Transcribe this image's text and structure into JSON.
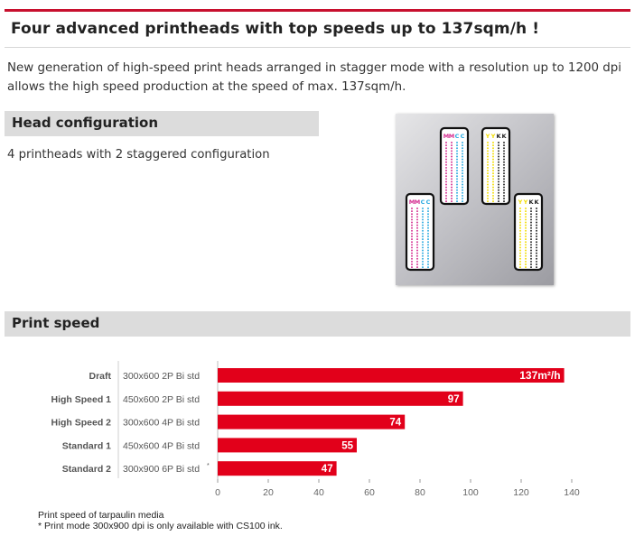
{
  "page": {
    "title": "Four advanced printheads with top speeds up to 137sqm/h !",
    "intro": "New generation of high-speed print heads arranged in stagger mode with a resolution up to 1200 dpi allows the high speed production at the speed of max. 137sqm/h."
  },
  "head_config": {
    "heading": "Head configuration",
    "text": "4 printheads with 2 staggered configuration",
    "heads": [
      {
        "labels": [
          "M",
          "M",
          "C",
          "C"
        ],
        "colors": [
          "#d42b8f",
          "#d42b8f",
          "#29a9e0",
          "#29a9e0"
        ]
      },
      {
        "labels": [
          "Y",
          "Y",
          "K",
          "K"
        ],
        "colors": [
          "#f2dd00",
          "#f2dd00",
          "#222222",
          "#222222"
        ]
      },
      {
        "labels": [
          "M",
          "M",
          "C",
          "C"
        ],
        "colors": [
          "#d42b8f",
          "#d42b8f",
          "#29a9e0",
          "#29a9e0"
        ]
      },
      {
        "labels": [
          "Y",
          "Y",
          "K",
          "K"
        ],
        "colors": [
          "#f2dd00",
          "#f2dd00",
          "#222222",
          "#222222"
        ]
      }
    ]
  },
  "print_speed": {
    "heading": "Print speed",
    "footnote_1": "Print speed of tarpaulin media",
    "footnote_2": "* Print mode 300x900 dpi is only available with CS100 ink."
  },
  "chart_data": {
    "type": "bar",
    "orientation": "horizontal",
    "categories": [
      "Draft",
      "High Speed 1",
      "High Speed 2",
      "Standard 1",
      "Standard 2"
    ],
    "modes": [
      "300x600 2P Bi std",
      "450x600 2P Bi std",
      "300x600 4P Bi std",
      "450x600 4P Bi std",
      "300x900 6P Bi std"
    ],
    "mode_marks": [
      "",
      "",
      "",
      "",
      "*"
    ],
    "values": [
      137,
      97,
      74,
      55,
      47
    ],
    "value_labels": [
      "137m²/h",
      "97",
      "74",
      "55",
      "47"
    ],
    "xlim": [
      0,
      140
    ],
    "xticks": [
      0,
      20,
      40,
      60,
      80,
      100,
      120,
      140
    ],
    "bar_color": "#e2001a",
    "grid": false
  }
}
